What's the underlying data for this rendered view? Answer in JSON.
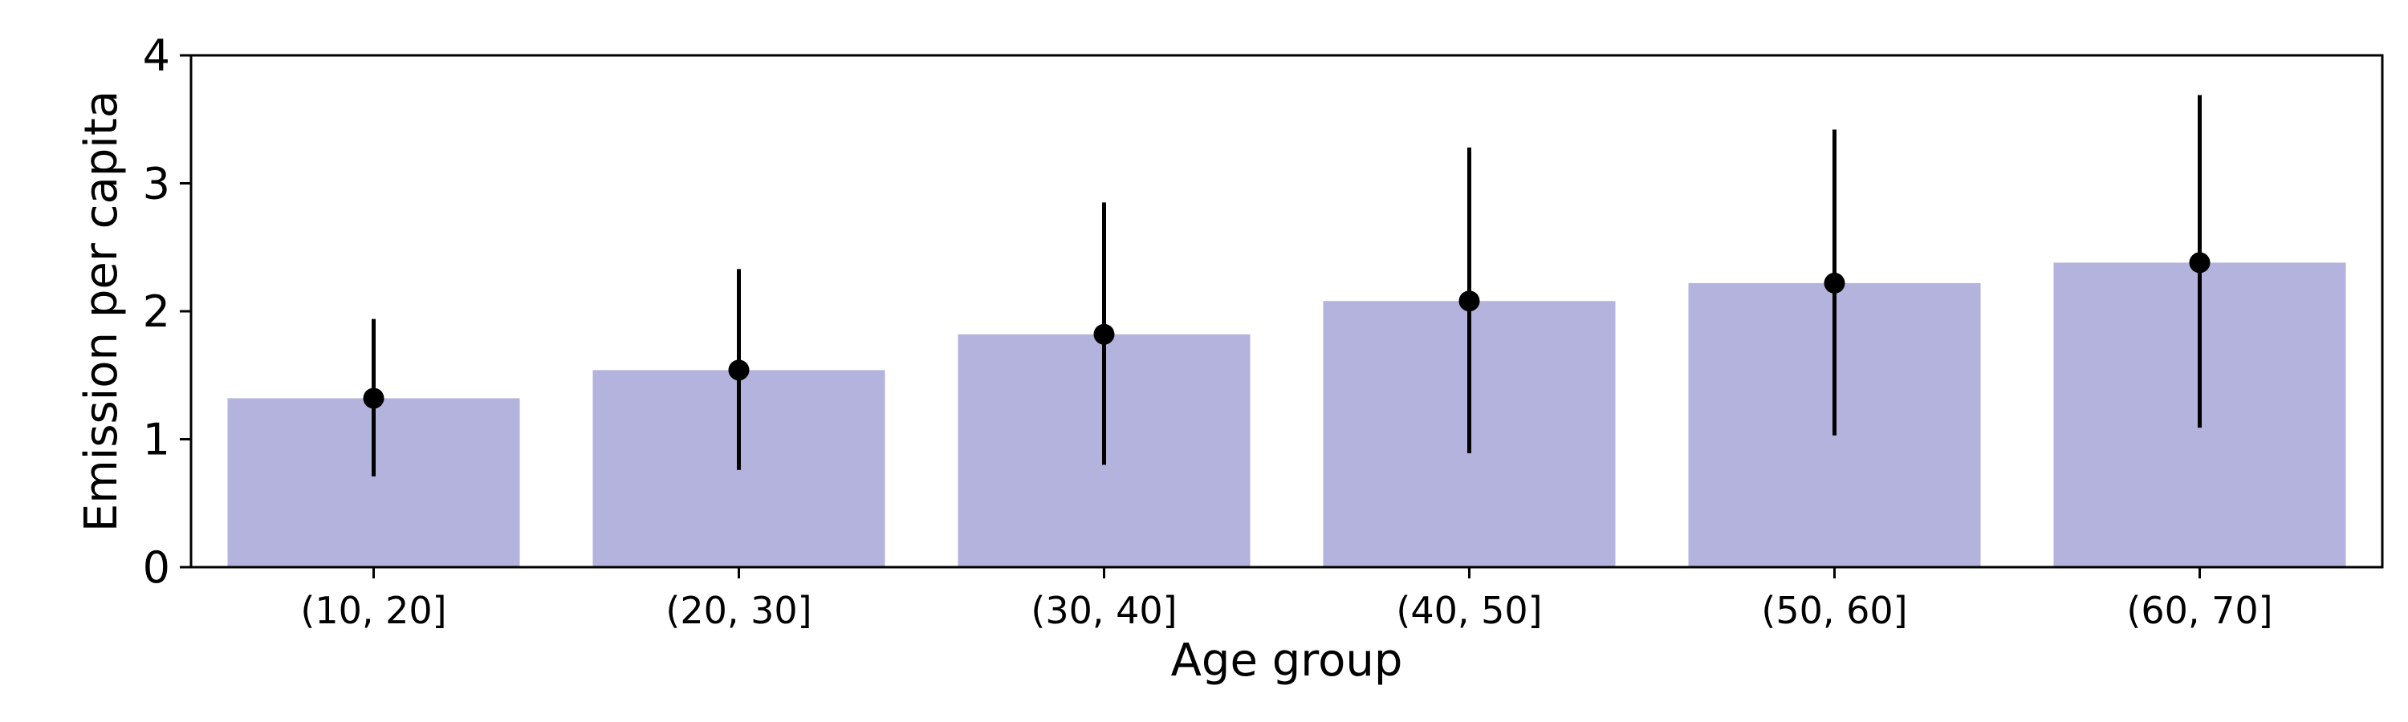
{
  "chart_data": {
    "type": "bar",
    "xlabel": "Age group",
    "ylabel": "Emission per capita",
    "ylim": [
      0,
      4
    ],
    "yticks": [
      0,
      1,
      2,
      3,
      4
    ],
    "grid": false,
    "categories": [
      "(10, 20]",
      "(20, 30]",
      "(30, 40]",
      "(40, 50]",
      "(50, 60]",
      "(60, 70]"
    ],
    "series": [
      {
        "values": [
          1.32,
          1.54,
          1.82,
          2.08,
          2.22,
          2.38
        ],
        "error_low": [
          0.71,
          0.76,
          0.8,
          0.89,
          1.03,
          1.09
        ],
        "error_high": [
          1.94,
          2.33,
          2.85,
          3.28,
          3.42,
          3.69
        ]
      }
    ],
    "colors": {
      "bar": "#b3b3dd",
      "point": "#000000",
      "errorbar": "#000000",
      "axis": "#000000"
    }
  }
}
